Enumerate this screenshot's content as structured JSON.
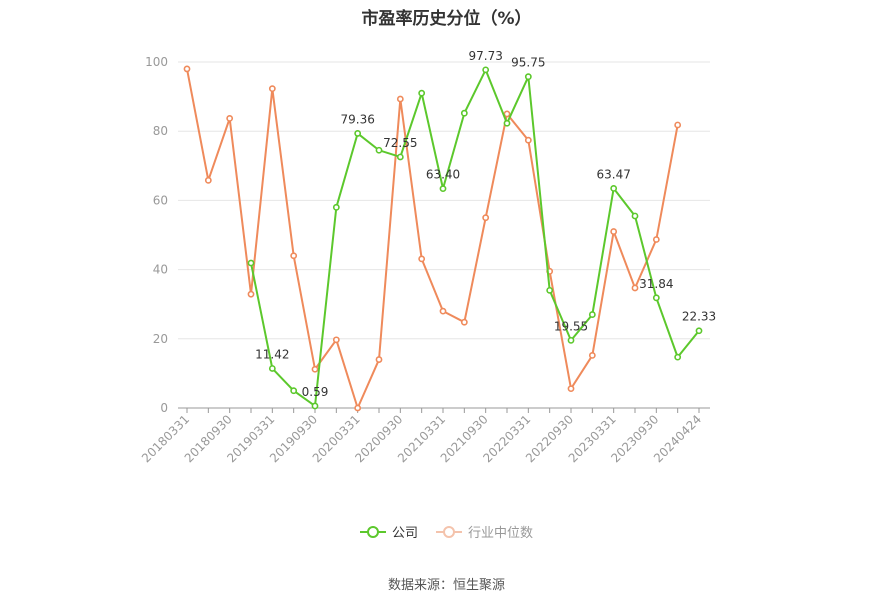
{
  "chart_data": {
    "type": "line",
    "title": "市盈率历史分位（%）",
    "ylim": [
      0,
      100
    ],
    "yticks": [
      0,
      20,
      40,
      60,
      80,
      100
    ],
    "x_tick_labels": [
      "20180331",
      "20180930",
      "20190331",
      "20190930",
      "20200331",
      "20200930",
      "20210331",
      "20210930",
      "20220331",
      "20220930",
      "20230331",
      "20230930",
      "20240424"
    ],
    "grid": true,
    "legend_position": "bottom",
    "series": [
      {
        "name": "公司",
        "color": "#5cc82c",
        "values": [
          null,
          null,
          null,
          41.9,
          11.42,
          5.0,
          0.59,
          58.0,
          79.36,
          74.5,
          72.55,
          91.0,
          63.4,
          85.2,
          97.73,
          82.3,
          95.75,
          34.0,
          19.55,
          27.0,
          63.47,
          55.5,
          31.84,
          14.7,
          22.33
        ],
        "data_labels": {
          "4": "11.42",
          "6": "0.59",
          "8": "79.36",
          "10": "72.55",
          "12": "63.40",
          "14": "97.73",
          "16": "95.75",
          "18": "19.55",
          "20": "63.47",
          "22": "31.84",
          "24": "22.33"
        }
      },
      {
        "name": "行业中位数",
        "color": "#ef8a5b",
        "values": [
          98.0,
          65.8,
          83.7,
          32.9,
          92.3,
          44.0,
          11.2,
          19.7,
          0.0,
          14.0,
          89.3,
          43.1,
          28.0,
          24.8,
          55.0,
          85.0,
          77.4,
          39.5,
          5.6,
          15.2,
          51.0,
          34.7,
          48.7,
          81.8,
          null
        ]
      }
    ]
  },
  "source_text": "数据来源：恒生聚源"
}
